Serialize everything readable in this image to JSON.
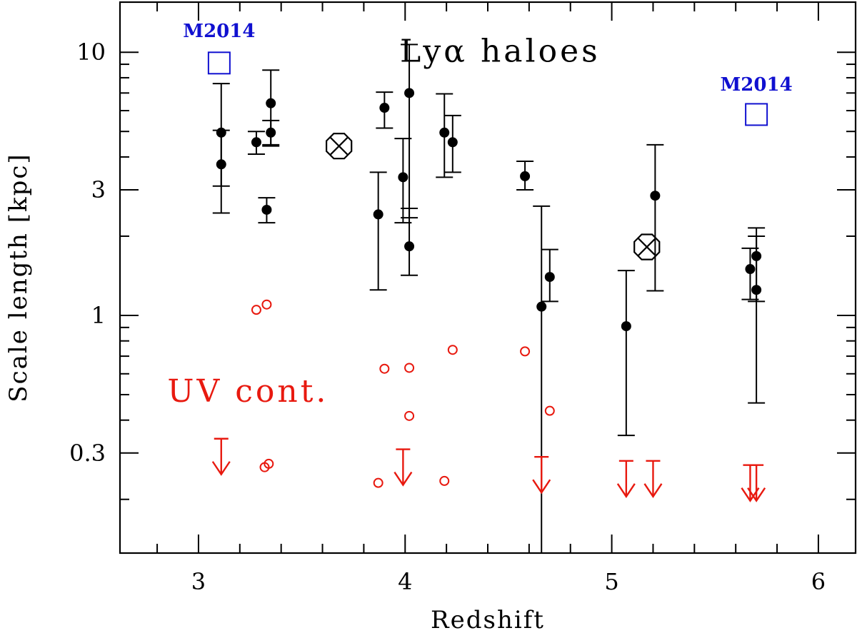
{
  "chart_data": {
    "type": "scatter",
    "xlabel": "Redshift",
    "ylabel": "Scale length [kpc]",
    "xlim": [
      2.62,
      6.18
    ],
    "ylim": [
      0.125,
      15.5
    ],
    "yscale": "log",
    "grid": false,
    "xticks": [
      {
        "value": 3,
        "label": "3"
      },
      {
        "value": 4,
        "label": "4"
      },
      {
        "value": 5,
        "label": "5"
      },
      {
        "value": 6,
        "label": "6"
      }
    ],
    "yticks": [
      {
        "value": 0.3,
        "label": "0.3"
      },
      {
        "value": 1,
        "label": "1"
      },
      {
        "value": 3,
        "label": "3"
      },
      {
        "value": 10,
        "label": "10"
      }
    ],
    "annotations": [
      {
        "text": "Lyα haloes",
        "x": 4.46,
        "y": 9.2,
        "color": "#000000"
      },
      {
        "text": "UV cont.",
        "x": 3.24,
        "y": 0.47,
        "color": "#e8190f"
      },
      {
        "text": "M2014",
        "x": 3.1,
        "y": 11.4,
        "color": "#1010d0"
      },
      {
        "text": "M2014",
        "x": 5.7,
        "y": 7.15,
        "color": "#1010d0"
      }
    ],
    "series": [
      {
        "name": "",
        "marker": "filled-circle",
        "color": "#000000",
        "points": [
          {
            "x": 3.11,
            "y": 4.95,
            "ylo": 3.1,
            "yhi": 7.6
          },
          {
            "x": 3.11,
            "y": 3.75,
            "ylo": 2.45,
            "yhi": 5.05
          },
          {
            "x": 3.28,
            "y": 4.55,
            "ylo": 4.1,
            "yhi": 5.0
          },
          {
            "x": 3.33,
            "y": 2.52,
            "ylo": 2.25,
            "yhi": 2.8
          },
          {
            "x": 3.35,
            "y": 4.95,
            "ylo": 4.4,
            "yhi": 5.5
          },
          {
            "x": 3.35,
            "y": 6.4,
            "ylo": 4.45,
            "yhi": 8.55
          },
          {
            "x": 3.87,
            "y": 2.42,
            "ylo": 1.25,
            "yhi": 3.5
          },
          {
            "x": 3.9,
            "y": 6.15,
            "ylo": 5.15,
            "yhi": 7.05
          },
          {
            "x": 3.99,
            "y": 3.35,
            "ylo": 2.25,
            "yhi": 4.7
          },
          {
            "x": 4.02,
            "y": 7.0,
            "ylo": 2.35,
            "yhi": 10.7
          },
          {
            "x": 4.02,
            "y": 1.83,
            "ylo": 1.42,
            "yhi": 2.55
          },
          {
            "x": 4.19,
            "y": 4.95,
            "ylo": 3.35,
            "yhi": 6.95
          },
          {
            "x": 4.23,
            "y": 4.55,
            "ylo": 3.5,
            "yhi": 5.75
          },
          {
            "x": 4.58,
            "y": 3.38,
            "ylo": 3.0,
            "yhi": 3.85
          },
          {
            "x": 4.66,
            "y": 1.08,
            "ylo": 0.1,
            "yhi": 2.6
          },
          {
            "x": 4.7,
            "y": 1.4,
            "ylo": 1.13,
            "yhi": 1.78
          },
          {
            "x": 5.07,
            "y": 0.91,
            "ylo": 0.35,
            "yhi": 1.48
          },
          {
            "x": 5.21,
            "y": 2.85,
            "ylo": 1.24,
            "yhi": 4.45
          },
          {
            "x": 5.67,
            "y": 1.5,
            "ylo": 1.15,
            "yhi": 1.8
          },
          {
            "x": 5.7,
            "y": 1.68,
            "ylo": 0.465,
            "yhi": 2.15
          },
          {
            "x": 5.7,
            "y": 1.25,
            "ylo": 1.13,
            "yhi": 2.0
          }
        ]
      },
      {
        "name": "",
        "marker": "crossed-circle",
        "color": "#000000",
        "points": [
          {
            "x": 3.68,
            "y": 4.4
          },
          {
            "x": 5.17,
            "y": 1.82
          }
        ]
      },
      {
        "name": "",
        "marker": "open-circle",
        "color": "#e8190f",
        "points": [
          {
            "x": 3.28,
            "y": 1.05
          },
          {
            "x": 3.33,
            "y": 1.1
          },
          {
            "x": 3.32,
            "y": 0.265
          },
          {
            "x": 3.34,
            "y": 0.273
          },
          {
            "x": 3.87,
            "y": 0.231
          },
          {
            "x": 3.9,
            "y": 0.627
          },
          {
            "x": 4.02,
            "y": 0.632
          },
          {
            "x": 4.02,
            "y": 0.415
          },
          {
            "x": 4.19,
            "y": 0.235
          },
          {
            "x": 4.23,
            "y": 0.74
          },
          {
            "x": 4.58,
            "y": 0.73
          },
          {
            "x": 4.7,
            "y": 0.434
          }
        ]
      },
      {
        "name": "",
        "marker": "upper-limit-arrow",
        "color": "#e8190f",
        "points": [
          {
            "x": 3.11,
            "y": 0.34
          },
          {
            "x": 3.99,
            "y": 0.31
          },
          {
            "x": 4.66,
            "y": 0.29
          },
          {
            "x": 5.07,
            "y": 0.28
          },
          {
            "x": 5.2,
            "y": 0.28
          },
          {
            "x": 5.67,
            "y": 0.27
          },
          {
            "x": 5.7,
            "y": 0.27
          }
        ]
      },
      {
        "name": "",
        "marker": "open-square",
        "color": "#1010d0",
        "points": [
          {
            "x": 3.1,
            "y": 9.1
          },
          {
            "x": 5.7,
            "y": 5.8
          }
        ]
      }
    ]
  }
}
